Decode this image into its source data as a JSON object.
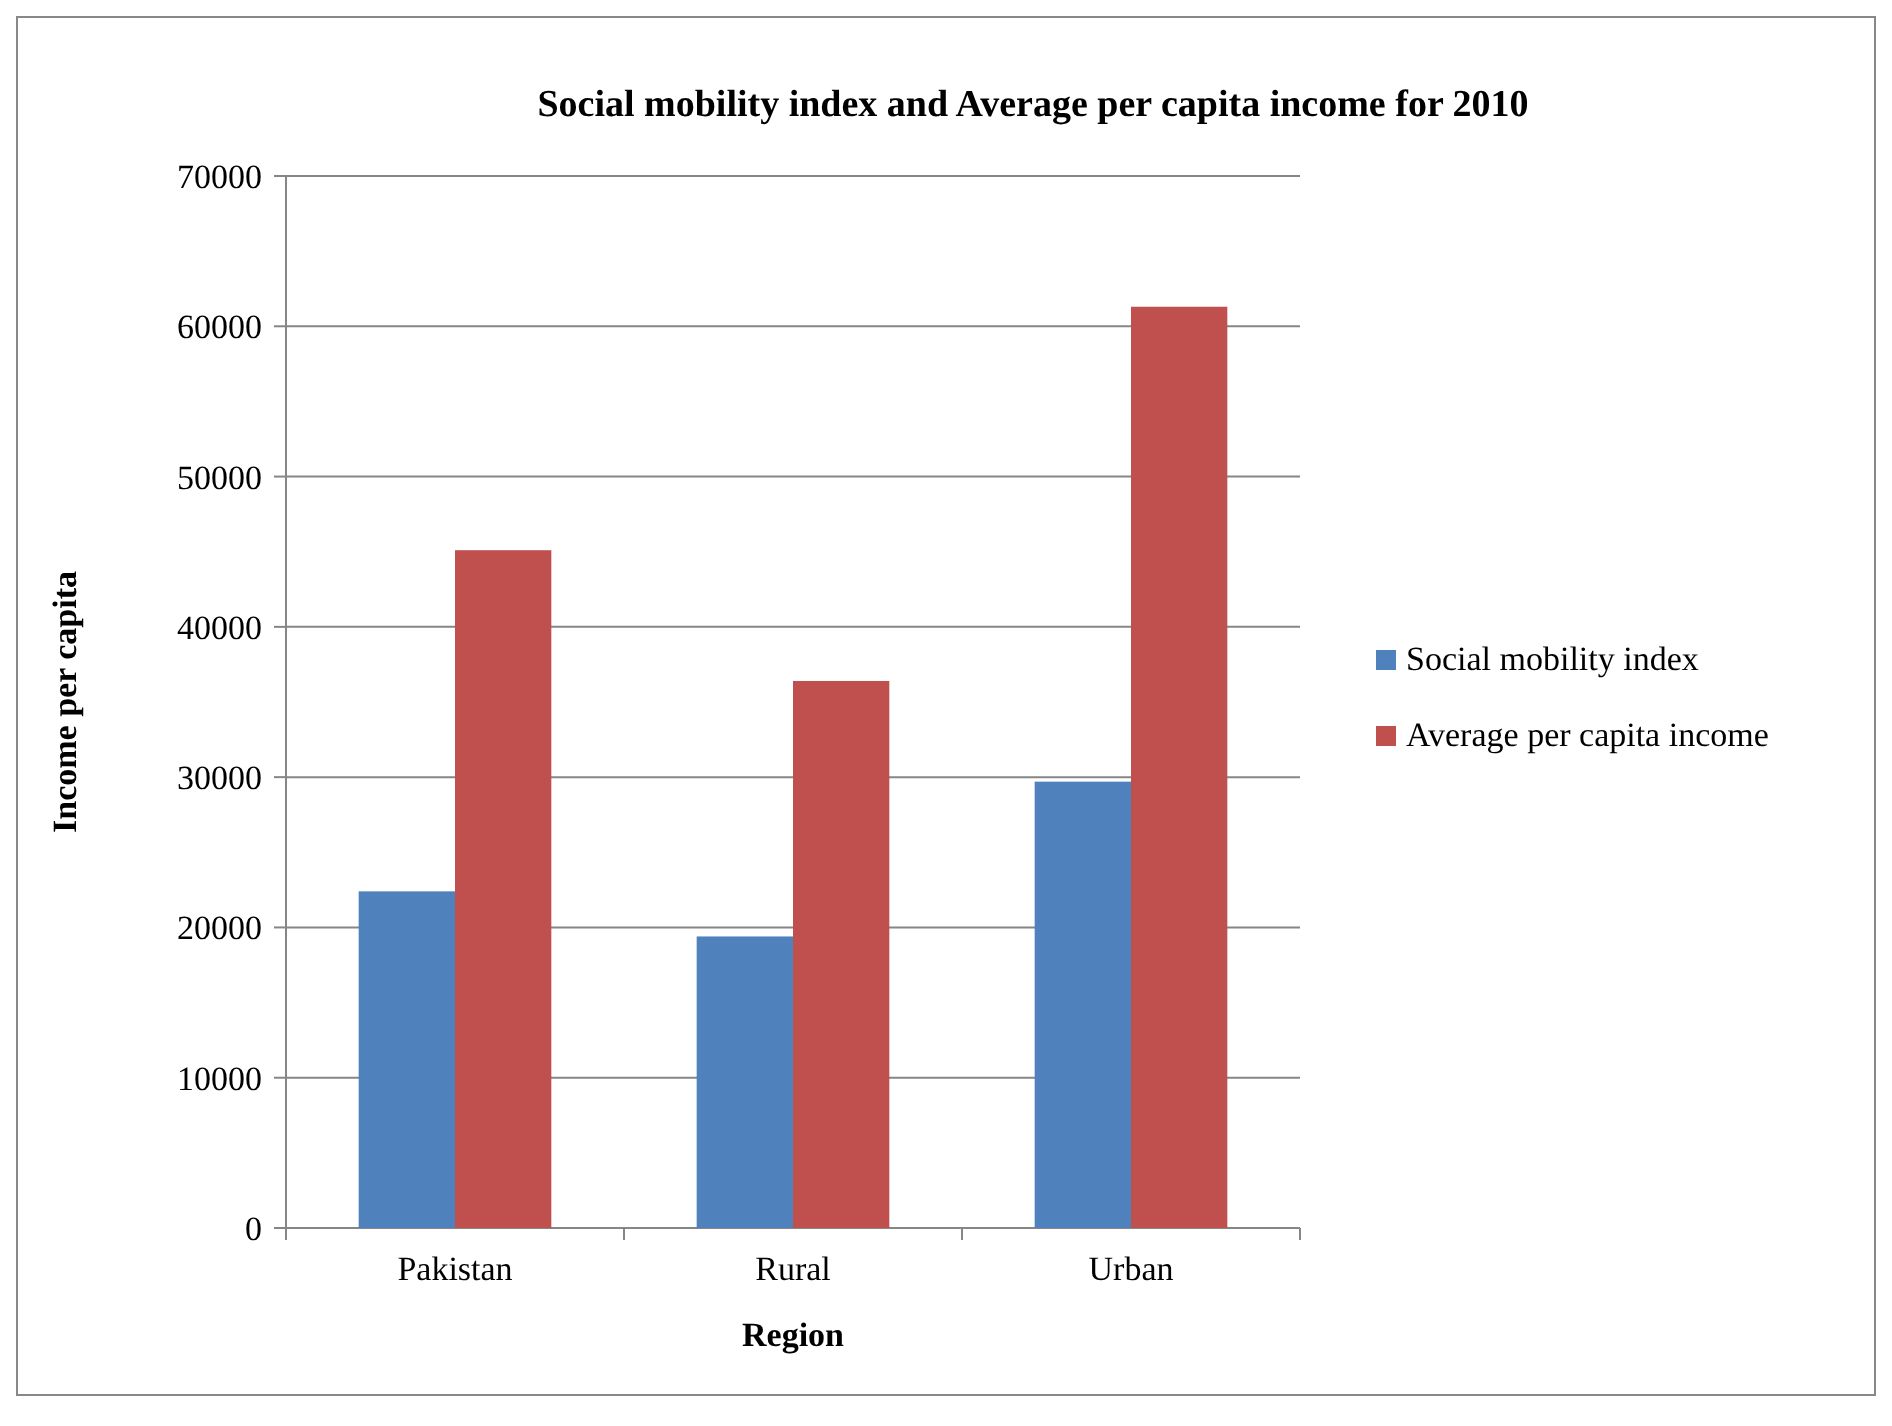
{
  "chart_data": {
    "type": "bar",
    "title": "Social mobility index and Average per capita income for 2010",
    "xlabel": "Region",
    "ylabel": "Income per capita",
    "categories": [
      "Pakistan",
      "Rural",
      "Urban"
    ],
    "series": [
      {
        "name": "Social mobility index",
        "color": "#4f81bd",
        "values": [
          22400,
          19400,
          29700
        ]
      },
      {
        "name": "Average per capita income",
        "color": "#c0504d",
        "values": [
          45100,
          36400,
          61300
        ]
      }
    ],
    "ylim": [
      0,
      70000
    ],
    "yticks": [
      0,
      10000,
      20000,
      30000,
      40000,
      50000,
      60000,
      70000
    ],
    "grid": "y",
    "legend": "right"
  }
}
